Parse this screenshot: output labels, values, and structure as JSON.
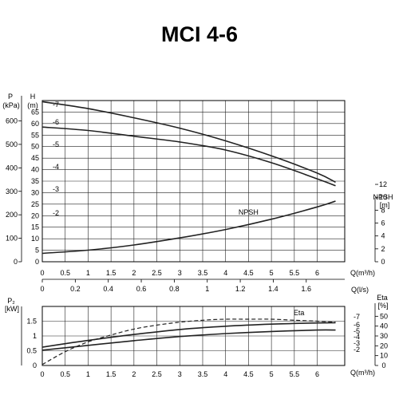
{
  "title": "MCI 4-6",
  "chart_data": [
    {
      "type": "line",
      "name": "head",
      "x_range": [
        0,
        6.6
      ],
      "x_ticks": [
        0,
        0.5,
        1,
        1.5,
        2,
        2.5,
        3,
        3.5,
        4,
        4.5,
        5,
        5.5,
        6
      ],
      "x_label": "Q(m³/h)",
      "x2_label": "Q(l/s)",
      "x2_ticks": [
        0,
        0.2,
        0.4,
        0.6,
        0.8,
        1,
        1.2,
        1.4,
        1.6
      ],
      "y_label": "H",
      "y_unit": "(m)",
      "y_range": [
        0,
        70
      ],
      "y_ticks": [
        0,
        5,
        10,
        15,
        20,
        25,
        30,
        35,
        40,
        45,
        50,
        55,
        60,
        65
      ],
      "p_label": "P",
      "p_unit": "(kPa)",
      "p_ticks": [
        0,
        100,
        200,
        300,
        400,
        500,
        600
      ],
      "npsh_label": "NPSH",
      "npsh_unit": "[m]",
      "npsh_ticks": [
        0,
        2,
        4,
        6,
        8,
        10,
        12
      ],
      "npsh_range": [
        0,
        25
      ],
      "side_labels": [
        "-7",
        "-6",
        "-5",
        "-4",
        "-3",
        "-2"
      ],
      "series": [
        {
          "name": "-7",
          "x": [
            0,
            1,
            2,
            3,
            4,
            5,
            6,
            6.4
          ],
          "y": [
            69.5,
            66.5,
            62.5,
            58,
            52.5,
            46,
            38.5,
            34.5
          ]
        },
        {
          "name": "-6",
          "x": [
            0,
            1,
            2,
            3,
            4,
            5,
            6,
            6.4
          ],
          "y": [
            58.5,
            57,
            54.5,
            52,
            48.5,
            43,
            36,
            33
          ]
        },
        {
          "name": "NPSH",
          "x": [
            0,
            1,
            2,
            3,
            4,
            5,
            6,
            6.4
          ],
          "npsh": [
            1.3,
            1.8,
            2.6,
            3.7,
            5.0,
            6.6,
            8.5,
            9.4
          ]
        }
      ]
    },
    {
      "type": "line",
      "name": "power",
      "x_range": [
        0,
        6.6
      ],
      "x_ticks": [
        0,
        0.5,
        1,
        1.5,
        2,
        2.5,
        3,
        3.5,
        4,
        4.5,
        5,
        5.5,
        6
      ],
      "x_label": "Q(m³/h)",
      "y_label": "P₂",
      "y_unit": "[kW]",
      "y_range": [
        0,
        2
      ],
      "y_ticks": [
        0,
        0.5,
        1,
        1.5
      ],
      "eta_label": "Eta",
      "eta_unit": "[%]",
      "eta_range": [
        0,
        60
      ],
      "eta_ticks": [
        0,
        10,
        20,
        30,
        40,
        50
      ],
      "side_labels": [
        "-7",
        "-6",
        "-5",
        "-4",
        "-3",
        "-2"
      ],
      "series": [
        {
          "name": "-7",
          "x": [
            0,
            1,
            2,
            3,
            4,
            5,
            6,
            6.4
          ],
          "y": [
            0.62,
            0.85,
            1.05,
            1.22,
            1.33,
            1.4,
            1.44,
            1.45
          ]
        },
        {
          "name": "-6",
          "x": [
            0,
            1,
            2,
            3,
            4,
            5,
            6,
            6.4
          ],
          "y": [
            0.52,
            0.68,
            0.84,
            0.98,
            1.08,
            1.15,
            1.2,
            1.2
          ]
        },
        {
          "name": "Eta",
          "x": [
            0,
            0.5,
            1,
            1.5,
            2,
            2.5,
            3,
            3.5,
            4,
            4.5,
            5,
            5.5,
            6,
            6.4
          ],
          "eta": [
            1,
            14,
            24,
            31,
            37,
            41,
            44,
            46,
            47,
            47,
            47,
            46,
            45,
            44
          ]
        }
      ]
    }
  ]
}
